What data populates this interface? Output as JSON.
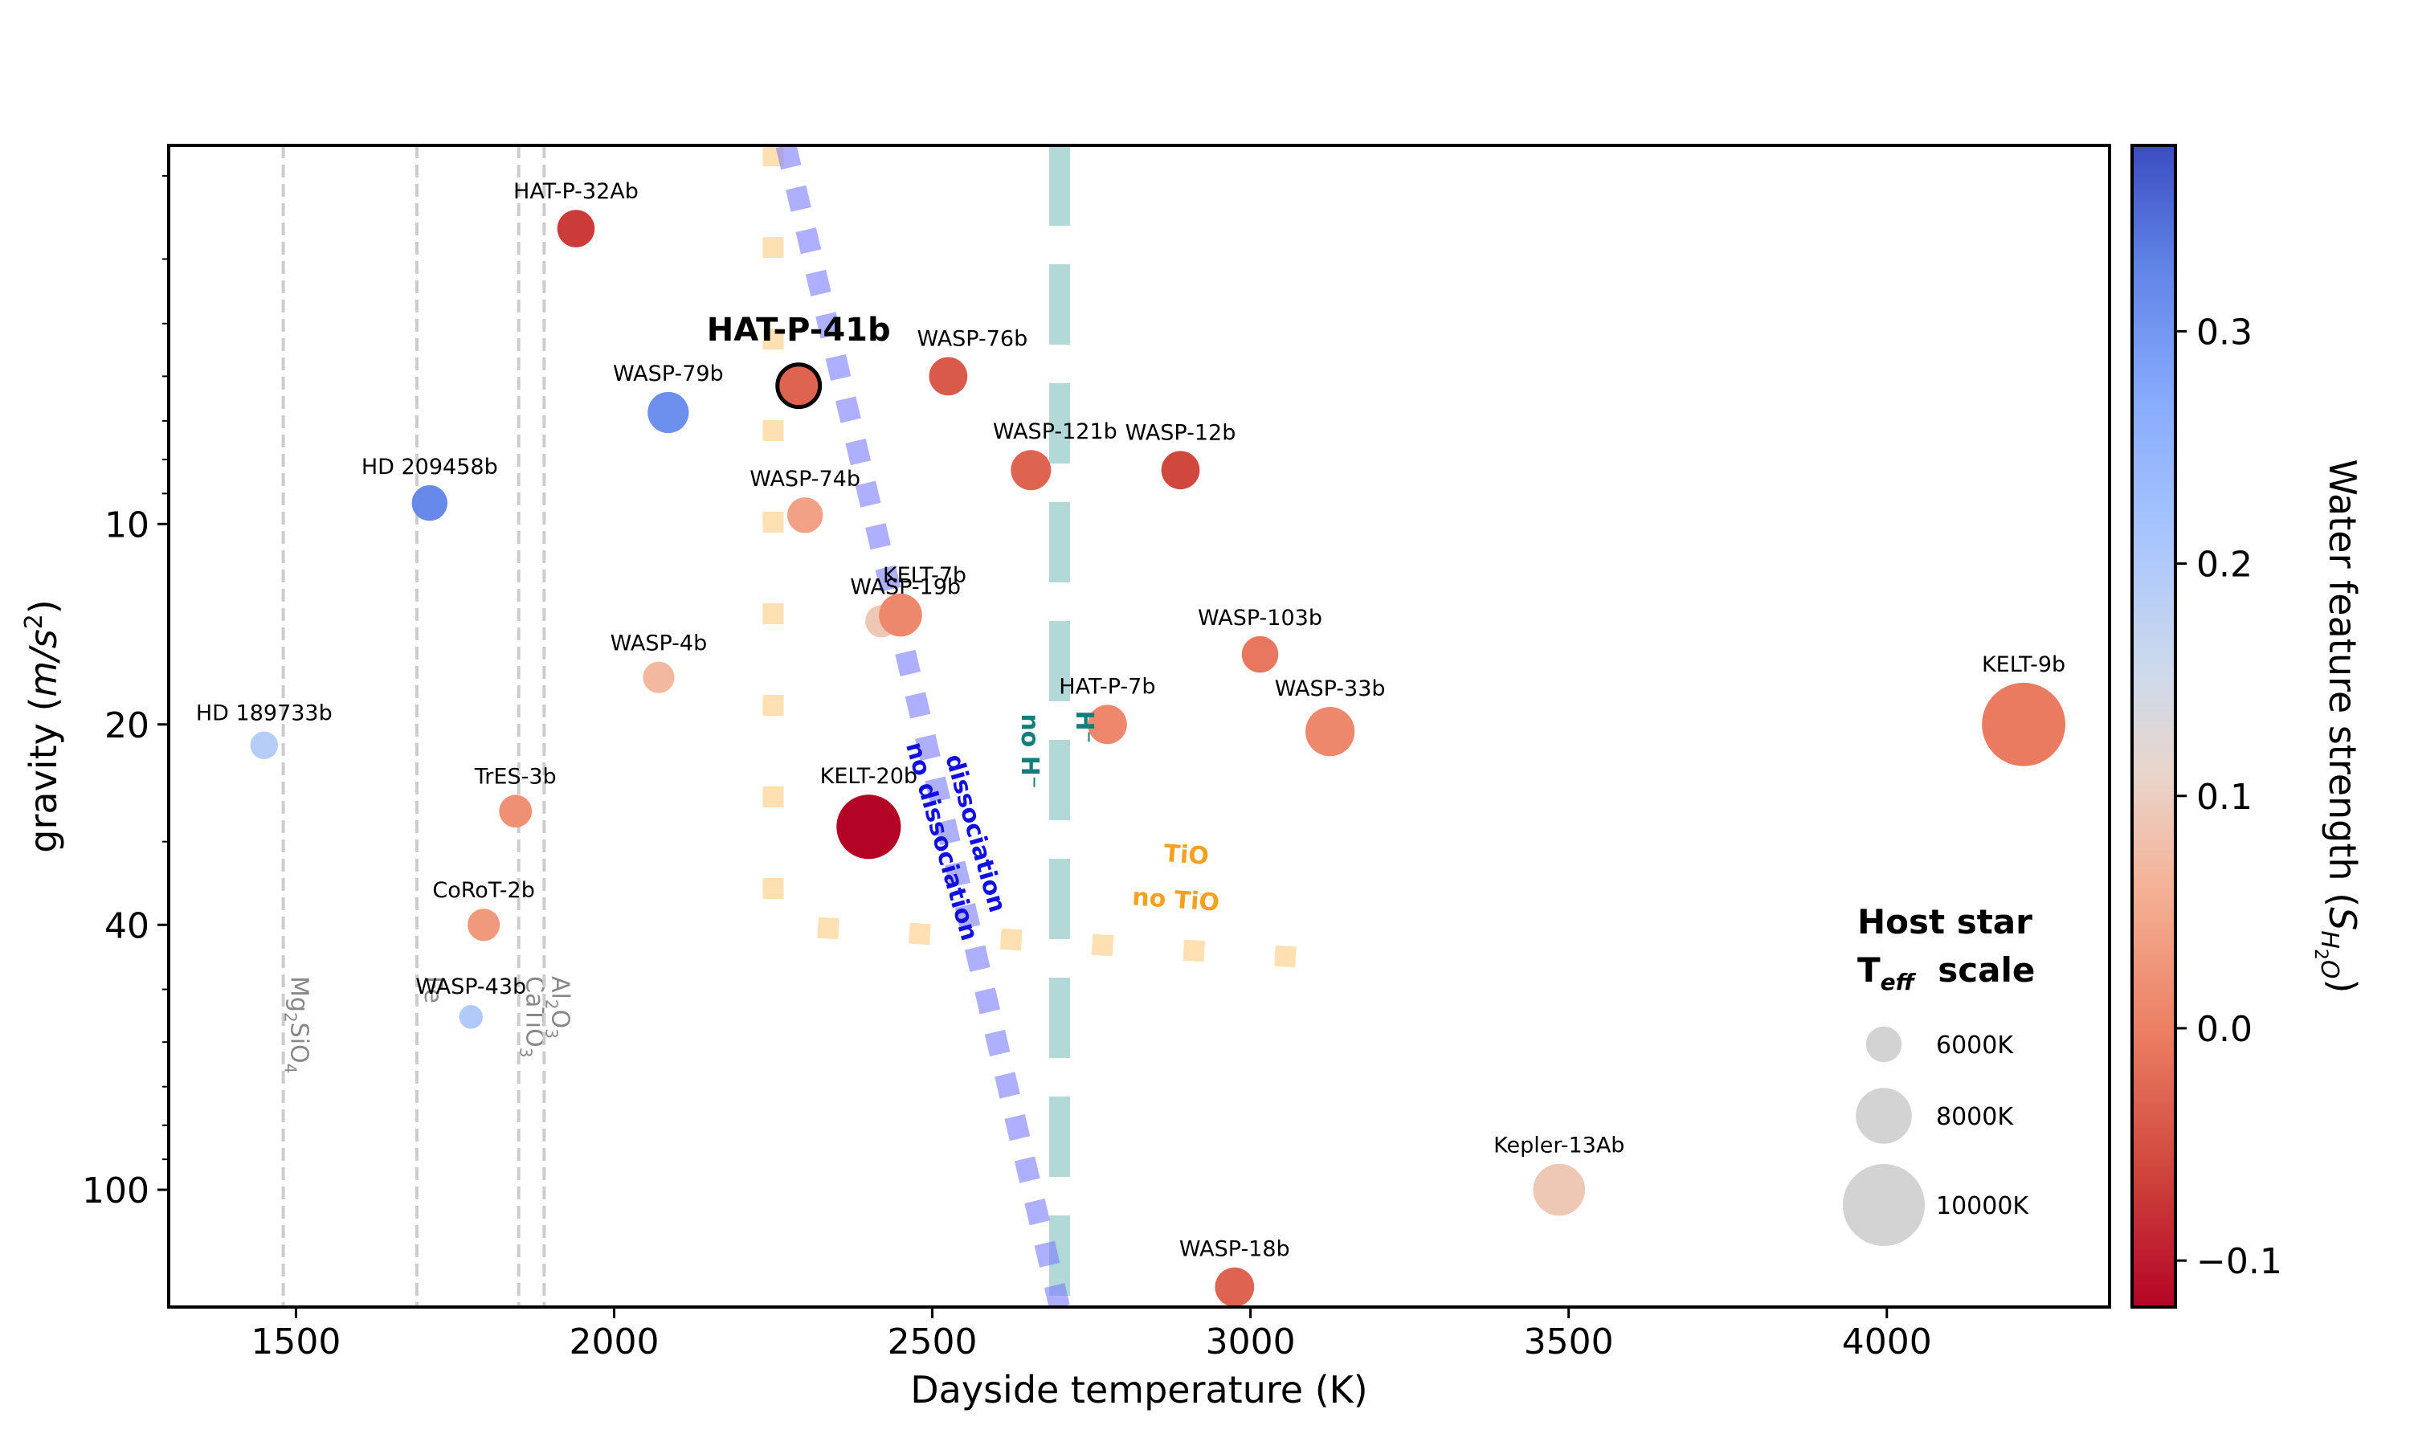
{
  "chart_data": {
    "type": "scatter",
    "xlabel": "Dayside temperature (K)",
    "ylabel_main": "gravity (",
    "ylabel_unit": "m/s",
    "ylabel_exp": "2",
    "ylabel_close": ")",
    "xlim": [
      1300,
      4350
    ],
    "ylim": [
      150,
      2.7
    ],
    "yscale": "log",
    "x_ticks": [
      1500,
      2000,
      2500,
      3000,
      3500,
      4000
    ],
    "y_ticks": [
      10,
      20,
      40,
      100
    ],
    "colorbar": {
      "label_main": "Water feature strength (",
      "label_sym": "S",
      "label_sub": "H",
      "label_sub2": "2",
      "label_sub3": "O",
      "label_close": ")",
      "range": [
        -0.12,
        0.38
      ],
      "ticks": [
        {
          "value": 0.3,
          "label": "0.3"
        },
        {
          "value": 0.2,
          "label": "0.2"
        },
        {
          "value": 0.1,
          "label": "0.1"
        },
        {
          "value": 0.0,
          "label": "0.0"
        },
        {
          "value": -0.1,
          "label": "−0.1"
        }
      ],
      "colormap": "coolwarm"
    },
    "condensation_lines": [
      {
        "x": 1480,
        "label": "Mg2SiO4",
        "parts": [
          "Mg",
          "2",
          "SiO",
          "4"
        ]
      },
      {
        "x": 1690,
        "label": "Fe",
        "parts": [
          "Fe"
        ]
      },
      {
        "x": 1850,
        "label": "CaTiO3",
        "parts": [
          "CaTiO",
          "3"
        ]
      },
      {
        "x": 1890,
        "label": "Al2O3",
        "parts": [
          "Al",
          "2",
          "O",
          "3"
        ]
      }
    ],
    "boundaries": {
      "dissociation": {
        "label_a": "dissociation",
        "label_b": "no dissociation",
        "color": "#7b7bff",
        "x_top": 2270,
        "x_bottom": 2700
      },
      "h_minus": {
        "label_a": "H⁻",
        "label_b": "no H⁻",
        "color": "#7fbfbf",
        "x": 2700
      },
      "tio": {
        "label_a": "TiO",
        "label_b": "no TiO",
        "color": "#ffcc80",
        "x_vertical": 2250,
        "g_corner": 40
      }
    },
    "legend": {
      "title_line1": "Host star",
      "title_line2_main": "T",
      "title_line2_sub": "eff",
      "title_line2_rest": "  scale",
      "entries": [
        {
          "label": "6000K",
          "teff": 6000
        },
        {
          "label": "8000K",
          "teff": 8000
        },
        {
          "label": "10000K",
          "teff": 10000
        }
      ]
    },
    "planets": [
      {
        "name": "HAT-P-32Ab",
        "teff_day": 1940,
        "g": 3.6,
        "s": -0.07,
        "star": 6200
      },
      {
        "name": "HAT-P-41b",
        "teff_day": 2290,
        "g": 6.2,
        "s": -0.03,
        "star": 6400,
        "highlight": true
      },
      {
        "name": "WASP-79b",
        "teff_day": 2085,
        "g": 6.8,
        "s": 0.31,
        "star": 6600
      },
      {
        "name": "WASP-76b",
        "teff_day": 2525,
        "g": 6.0,
        "s": -0.04,
        "star": 6300
      },
      {
        "name": "WASP-121b",
        "teff_day": 2655,
        "g": 8.3,
        "s": -0.03,
        "star": 6500
      },
      {
        "name": "WASP-12b",
        "teff_day": 2890,
        "g": 8.3,
        "s": -0.06,
        "star": 6300
      },
      {
        "name": "HD 209458b",
        "teff_day": 1710,
        "g": 9.3,
        "s": 0.32,
        "star": 6000
      },
      {
        "name": "WASP-74b",
        "teff_day": 2300,
        "g": 9.7,
        "s": 0.04,
        "star": 6000
      },
      {
        "name": "WASP-19b",
        "teff_day": 2420,
        "g": 14.0,
        "s": 0.09,
        "star": 5600
      },
      {
        "name": "KELT-7b",
        "teff_day": 2450,
        "g": 13.7,
        "s": 0.01,
        "star": 6800
      },
      {
        "name": "WASP-4b",
        "teff_day": 2070,
        "g": 17.0,
        "s": 0.07,
        "star": 5500
      },
      {
        "name": "WASP-103b",
        "teff_day": 3015,
        "g": 15.7,
        "s": -0.01,
        "star": 6100
      },
      {
        "name": "HD 189733b",
        "teff_day": 1450,
        "g": 21.5,
        "s": 0.19,
        "star": 5000
      },
      {
        "name": "HAT-P-7b",
        "teff_day": 2775,
        "g": 20.0,
        "s": 0.01,
        "star": 6400
      },
      {
        "name": "WASP-33b",
        "teff_day": 3125,
        "g": 20.5,
        "s": 0.01,
        "star": 7400
      },
      {
        "name": "KELT-9b",
        "teff_day": 4215,
        "g": 20.0,
        "s": -0.005,
        "star": 10100
      },
      {
        "name": "TrES-3b",
        "teff_day": 1845,
        "g": 27.0,
        "s": 0.02,
        "star": 5650
      },
      {
        "name": "KELT-20b",
        "teff_day": 2400,
        "g": 28.5,
        "s": -0.12,
        "star": 8700
      },
      {
        "name": "CoRoT-2b",
        "teff_day": 1795,
        "g": 40.0,
        "s": 0.03,
        "star": 5600
      },
      {
        "name": "WASP-43b",
        "teff_day": 1775,
        "g": 55.0,
        "s": 0.2,
        "star": 4400
      },
      {
        "name": "Kepler-13Ab",
        "teff_day": 3485,
        "g": 100.0,
        "s": 0.09,
        "star": 7650
      },
      {
        "name": "WASP-18b",
        "teff_day": 2975,
        "g": 140.0,
        "s": -0.03,
        "star": 6400
      }
    ]
  }
}
